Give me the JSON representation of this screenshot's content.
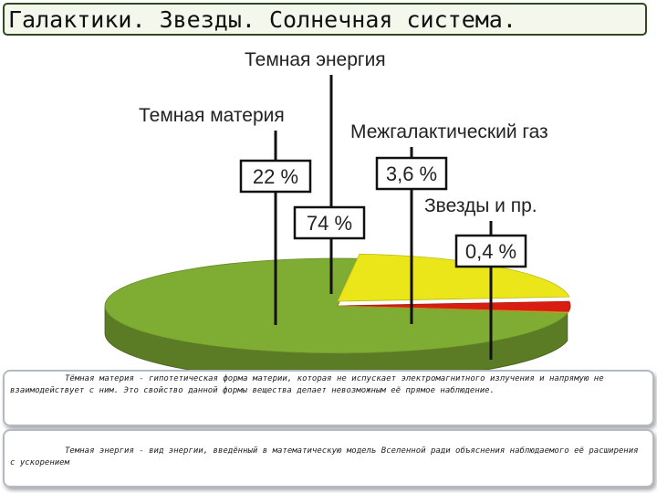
{
  "header": {
    "title": "Галактики. Звезды. Солнечная система."
  },
  "chart_data": {
    "type": "pie",
    "labels": [
      "Темная энергия",
      "Темная материя",
      "Межгалактический газ",
      "Звезды и пр."
    ],
    "values": [
      74,
      22,
      3.6,
      0.4
    ],
    "value_labels": [
      "74 %",
      "22 %",
      "3,6 %",
      "0,4 %"
    ],
    "colors": [
      "#7fac33",
      "#ebe61a",
      "#d81d12",
      "#e2b72a"
    ]
  },
  "notes": [
    {
      "text": "Тёмная материя - гипотетическая форма материи, которая не испускает электромагнитного излучения и напрямую не взаимодействует с ним. Это свойство данной формы вещества делает невозможным её прямое наблюдение."
    },
    {
      "text": "Темная энергия - вид энергии, введённый в математическую модель Вселенной ради объяснения наблюдаемого её расширения с ускорением"
    }
  ]
}
